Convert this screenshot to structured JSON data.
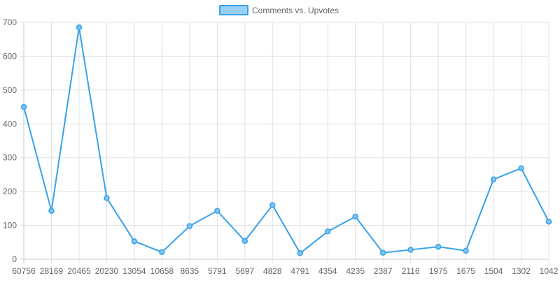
{
  "chart_data": {
    "type": "line",
    "title": "",
    "xlabel": "",
    "ylabel": "",
    "legend": {
      "position": "top-center",
      "label": "Comments vs. Upvotes"
    },
    "grid": true,
    "ylim": [
      0,
      700
    ],
    "yticks": [
      0,
      100,
      200,
      300,
      400,
      500,
      600,
      700
    ],
    "categories": [
      "60756",
      "28169",
      "20465",
      "20230",
      "13054",
      "10658",
      "8635",
      "5791",
      "5697",
      "4828",
      "4791",
      "4354",
      "4235",
      "2387",
      "2116",
      "1975",
      "1675",
      "1504",
      "1302",
      "1042"
    ],
    "series": [
      {
        "name": "Comments vs. Upvotes",
        "values": [
          450,
          143,
          685,
          181,
          53,
          21,
          98,
          143,
          54,
          160,
          18,
          82,
          126,
          19,
          28,
          37,
          25,
          236,
          269,
          111
        ]
      }
    ],
    "colors": {
      "line": "#36a2eb",
      "point_fill": "#7fc4f1",
      "legend_fill": "#9ad0f5",
      "grid": "#e1e1e1",
      "axis": "#c8c8c8",
      "text": "#666666"
    }
  }
}
